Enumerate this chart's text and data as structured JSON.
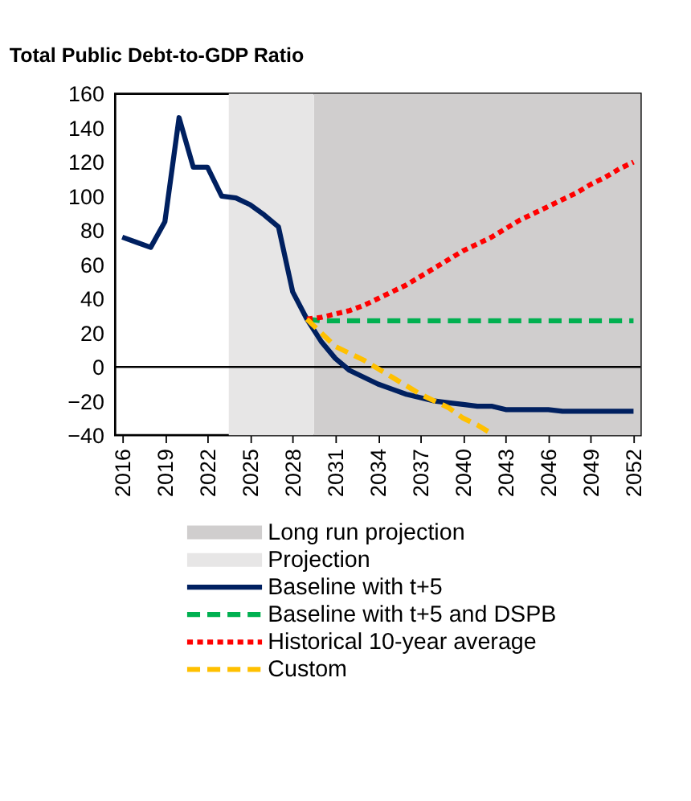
{
  "chart_data": {
    "type": "line",
    "title": "Total Public Debt-to-GDP Ratio",
    "x": [
      2016,
      2017,
      2018,
      2019,
      2020,
      2021,
      2022,
      2023,
      2024,
      2025,
      2026,
      2027,
      2028,
      2029,
      2030,
      2031,
      2032,
      2033,
      2034,
      2035,
      2036,
      2037,
      2038,
      2039,
      2040,
      2041,
      2042,
      2043,
      2044,
      2045,
      2046,
      2047,
      2048,
      2049,
      2050,
      2051,
      2052
    ],
    "series": [
      {
        "name": "Baseline with t+5",
        "color": "#002060",
        "line_style": "solid",
        "values": [
          76,
          73,
          70,
          85,
          146,
          117,
          117,
          100,
          99,
          95,
          89,
          82,
          44,
          28,
          15,
          5,
          -2,
          -6,
          -10,
          -13,
          -16,
          -18,
          -20,
          -21,
          -22,
          -23,
          -23,
          -25,
          -25,
          -25,
          -25,
          -26,
          -26,
          -26,
          -26,
          -26,
          -26
        ]
      },
      {
        "name": "Baseline with t+5 and DSPB",
        "color": "#00b050",
        "line_style": "dashed",
        "values": [
          null,
          null,
          null,
          null,
          null,
          null,
          null,
          null,
          null,
          null,
          null,
          null,
          null,
          28,
          27,
          27,
          27,
          27,
          27,
          27,
          27,
          27,
          27,
          27,
          27,
          27,
          27,
          27,
          27,
          27,
          27,
          27,
          27,
          27,
          27,
          27,
          27
        ]
      },
      {
        "name": "Historical 10-year average",
        "color": "#ff0000",
        "line_style": "dotted",
        "values": [
          null,
          null,
          null,
          null,
          null,
          null,
          null,
          null,
          null,
          null,
          null,
          null,
          null,
          28,
          29,
          31,
          33,
          36,
          40,
          44,
          48,
          53,
          58,
          63,
          68,
          72,
          76,
          81,
          86,
          90,
          94,
          98,
          102,
          107,
          111,
          116,
          120
        ]
      },
      {
        "name": "Custom",
        "color": "#ffc000",
        "line_style": "dashed",
        "values": [
          null,
          null,
          null,
          null,
          null,
          null,
          null,
          null,
          null,
          null,
          null,
          null,
          null,
          28,
          20,
          12,
          8,
          4,
          -1,
          -6,
          -11,
          -16,
          -20,
          -24,
          -30,
          -34,
          -39,
          null,
          null,
          null,
          null,
          null,
          null,
          null,
          null,
          null,
          null
        ]
      }
    ],
    "bands": [
      {
        "axis": "x",
        "from": 2029.5,
        "to": 2052.5,
        "label": "Long run projection",
        "color": "#d0cece"
      },
      {
        "axis": "x",
        "from": 2023.5,
        "to": 2029.5,
        "label": "Projection",
        "color": "#e7e6e6"
      }
    ],
    "ref_lines": [
      {
        "axis": "y",
        "value": 0,
        "color": "#000000"
      }
    ],
    "xlim": [
      2015.5,
      2052.5
    ],
    "xticks": [
      2016,
      2019,
      2022,
      2025,
      2028,
      2031,
      2034,
      2037,
      2040,
      2043,
      2046,
      2049,
      2052
    ],
    "ylim": [
      -40,
      160
    ],
    "yticks": [
      -40,
      -20,
      0,
      20,
      40,
      60,
      80,
      100,
      120,
      140,
      160
    ],
    "grid": false,
    "legend": "bottom"
  }
}
